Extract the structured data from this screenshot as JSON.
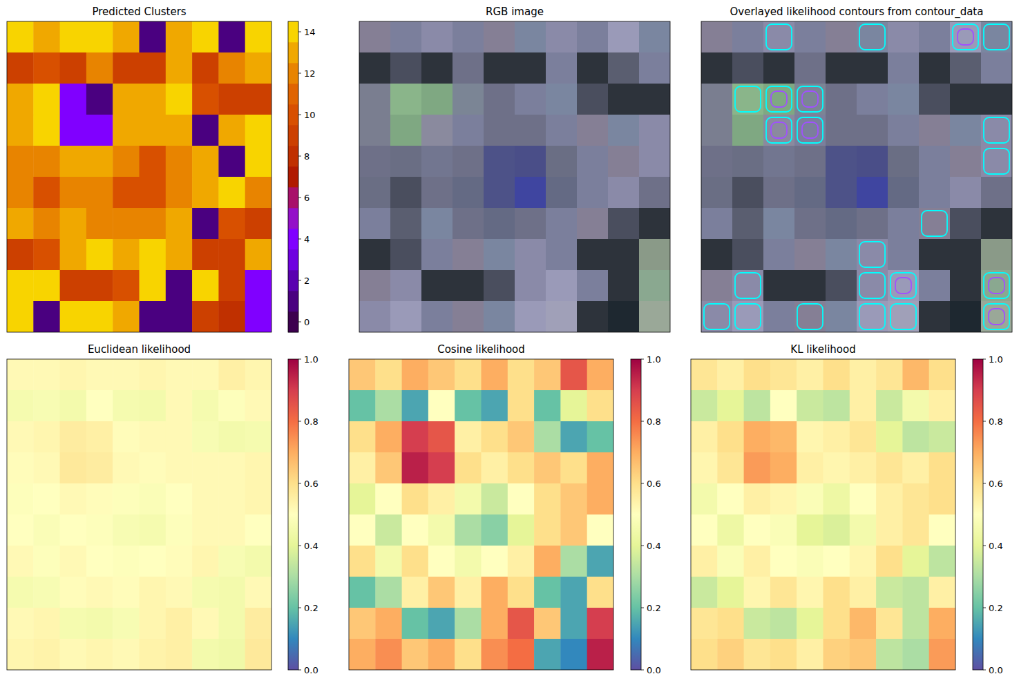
{
  "chart_data": [
    {
      "type": "clustermap",
      "title": "Predicted Clusters",
      "tick_labels": false,
      "clim": [
        -0.5,
        14.5
      ],
      "cticks": [
        0,
        2,
        4,
        6,
        8,
        10,
        12,
        14
      ],
      "colors": [
        "#3d004f",
        "#4a0080",
        "#5a00b0",
        "#6e00e0",
        "#8000ff",
        "#9410c8",
        "#a8106a",
        "#b01a00",
        "#c03000",
        "#cc4000",
        "#d85000",
        "#e06400",
        "#e88400",
        "#f0a800",
        "#f8d400"
      ],
      "cells": [
        [
          14,
          13,
          14,
          14,
          13,
          1,
          13,
          14,
          1,
          14
        ],
        [
          9,
          10,
          9,
          12,
          9,
          9,
          13,
          9,
          12,
          13
        ],
        [
          13,
          14,
          4,
          1,
          13,
          13,
          14,
          10,
          9,
          9
        ],
        [
          13,
          14,
          4,
          4,
          13,
          13,
          13,
          1,
          13,
          14
        ],
        [
          12,
          12,
          13,
          13,
          12,
          10,
          12,
          13,
          1,
          14
        ],
        [
          12,
          10,
          12,
          12,
          10,
          10,
          12,
          13,
          14,
          12
        ],
        [
          13,
          12,
          13,
          12,
          12,
          12,
          13,
          1,
          10,
          9
        ],
        [
          9,
          10,
          13,
          14,
          13,
          14,
          13,
          9,
          9,
          13
        ],
        [
          14,
          14,
          9,
          9,
          10,
          14,
          1,
          14,
          9,
          4
        ],
        [
          14,
          1,
          14,
          14,
          13,
          1,
          1,
          9,
          8,
          4
        ]
      ]
    },
    {
      "type": "image",
      "title": "RGB image",
      "tick_labels": false,
      "cells": [
        [
          "#857f95",
          "#7b7f9c",
          "#8a8aa8",
          "#7b7f9c",
          "#857f95",
          "#7a86a0",
          "#8a8aa8",
          "#7b7f9c",
          "#9a9ab8",
          "#7a86a0"
        ],
        [
          "#2d333b",
          "#4a4e5e",
          "#2d333b",
          "#6e7088",
          "#2d333b",
          "#2d333b",
          "#7b7f9c",
          "#2d333b",
          "#5a5e70",
          "#7b7f9c"
        ],
        [
          "#7a7e90",
          "#8ab58a",
          "#7fa882",
          "#7b8595",
          "#6e7088",
          "#7b7f9c",
          "#7a86a0",
          "#4a4e5e",
          "#2d333b",
          "#2d333b"
        ],
        [
          "#7a7e90",
          "#7fa882",
          "#8a8a9e",
          "#7b7f9c",
          "#6e7088",
          "#6e7088",
          "#7b7f9c",
          "#857f95",
          "#7a86a0",
          "#8a8aa8"
        ],
        [
          "#6e7088",
          "#6a6e84",
          "#727690",
          "#6e7088",
          "#4d5288",
          "#4a4e88",
          "#6a6e84",
          "#7b7f9c",
          "#857f95",
          "#8a8aa8"
        ],
        [
          "#6a6e84",
          "#4a4e5e",
          "#6e7088",
          "#646a84",
          "#4d5288",
          "#3f45a0",
          "#646a84",
          "#7b7f9c",
          "#8a8aa8",
          "#6e7088"
        ],
        [
          "#7b7f9c",
          "#5a5e70",
          "#7a86a0",
          "#6e7088",
          "#646a84",
          "#6e7088",
          "#7b7f9c",
          "#857f95",
          "#4a4e5e",
          "#2d333b"
        ],
        [
          "#2d333b",
          "#4a4e5e",
          "#7b7f9c",
          "#857f95",
          "#7a86a0",
          "#8a8aa8",
          "#7b7f9c",
          "#2d333b",
          "#2d333b",
          "#8a9a88"
        ],
        [
          "#857f95",
          "#8a8aa8",
          "#2d333b",
          "#2d333b",
          "#4a4e5e",
          "#8a8aa8",
          "#9a9ab8",
          "#7b7f9c",
          "#2d333b",
          "#8aa890"
        ],
        [
          "#8a8aa8",
          "#9a9ab8",
          "#7b7f9c",
          "#857f95",
          "#7a86a0",
          "#9a9ab8",
          "#a0a0b8",
          "#2d333b",
          "#1e2830",
          "#9aa898"
        ]
      ]
    },
    {
      "type": "contour",
      "title": "Overlayed likelihood contours from contour_data",
      "tick_labels": false,
      "levels": [
        0.7,
        0.85
      ],
      "colors": [
        "#00ffff",
        "#a050ff"
      ],
      "cells": [
        [
          0.65,
          0.6,
          0.7,
          0.65,
          0.6,
          0.7,
          0.6,
          0.65,
          0.85,
          0.7
        ],
        [
          0.2,
          0.3,
          0.15,
          0.5,
          0.2,
          0.15,
          0.6,
          0.2,
          0.4,
          0.6
        ],
        [
          0.6,
          0.7,
          0.9,
          0.85,
          0.55,
          0.6,
          0.65,
          0.3,
          0.15,
          0.2
        ],
        [
          0.55,
          0.65,
          0.95,
          0.9,
          0.6,
          0.55,
          0.6,
          0.65,
          0.6,
          0.7
        ],
        [
          0.4,
          0.5,
          0.6,
          0.55,
          0.45,
          0.35,
          0.5,
          0.6,
          0.65,
          0.7
        ],
        [
          0.5,
          0.35,
          0.5,
          0.45,
          0.3,
          0.25,
          0.4,
          0.6,
          0.65,
          0.5
        ],
        [
          0.6,
          0.45,
          0.6,
          0.5,
          0.45,
          0.5,
          0.55,
          0.7,
          0.3,
          0.15
        ],
        [
          0.2,
          0.3,
          0.55,
          0.65,
          0.55,
          0.7,
          0.6,
          0.2,
          0.15,
          0.6
        ],
        [
          0.65,
          0.7,
          0.2,
          0.15,
          0.3,
          0.7,
          0.85,
          0.65,
          0.15,
          0.9
        ],
        [
          0.7,
          0.75,
          0.65,
          0.7,
          0.6,
          0.75,
          0.8,
          0.15,
          0.1,
          0.95
        ]
      ]
    },
    {
      "type": "heatmap",
      "title": "Euclidean likelihood",
      "tick_labels": false,
      "clim": [
        0,
        1
      ],
      "cticks": [
        {
          "value": 0,
          "label": "0.0"
        },
        0.2,
        0.4,
        0.6,
        0.8,
        {
          "value": 1,
          "label": "1.0"
        }
      ],
      "colors": [
        "#5e4fa2",
        "#3288bd",
        "#66c2a5",
        "#abdda4",
        "#e6f598",
        "#ffffbf",
        "#fee08b",
        "#fdae61",
        "#f46d43",
        "#d53e4f",
        "#9e0142"
      ],
      "cells": [
        [
          0.52,
          0.52,
          0.53,
          0.52,
          0.52,
          0.53,
          0.52,
          0.52,
          0.55,
          0.53
        ],
        [
          0.46,
          0.47,
          0.45,
          0.5,
          0.46,
          0.45,
          0.52,
          0.46,
          0.49,
          0.52
        ],
        [
          0.52,
          0.53,
          0.56,
          0.55,
          0.51,
          0.52,
          0.52,
          0.47,
          0.45,
          0.46
        ],
        [
          0.51,
          0.52,
          0.57,
          0.56,
          0.52,
          0.51,
          0.52,
          0.52,
          0.52,
          0.53
        ],
        [
          0.49,
          0.5,
          0.52,
          0.51,
          0.49,
          0.48,
          0.5,
          0.52,
          0.52,
          0.53
        ],
        [
          0.5,
          0.48,
          0.5,
          0.49,
          0.47,
          0.46,
          0.49,
          0.52,
          0.52,
          0.5
        ],
        [
          0.52,
          0.49,
          0.52,
          0.5,
          0.49,
          0.5,
          0.51,
          0.53,
          0.47,
          0.45
        ],
        [
          0.46,
          0.47,
          0.51,
          0.52,
          0.51,
          0.53,
          0.52,
          0.46,
          0.45,
          0.52
        ],
        [
          0.52,
          0.53,
          0.46,
          0.45,
          0.47,
          0.53,
          0.55,
          0.52,
          0.45,
          0.56
        ],
        [
          0.53,
          0.54,
          0.52,
          0.53,
          0.52,
          0.54,
          0.55,
          0.45,
          0.44,
          0.57
        ]
      ]
    },
    {
      "type": "heatmap",
      "title": "Cosine likelihood",
      "tick_labels": false,
      "clim": [
        0,
        1
      ],
      "cticks": [
        {
          "value": 0,
          "label": "0.0"
        },
        0.2,
        0.4,
        0.6,
        0.8,
        {
          "value": 1,
          "label": "1.0"
        }
      ],
      "colors": [
        "#5e4fa2",
        "#3288bd",
        "#66c2a5",
        "#abdda4",
        "#e6f598",
        "#ffffbf",
        "#fee08b",
        "#fdae61",
        "#f46d43",
        "#d53e4f",
        "#9e0142"
      ],
      "cells": [
        [
          0.65,
          0.6,
          0.7,
          0.65,
          0.6,
          0.7,
          0.6,
          0.65,
          0.85,
          0.7
        ],
        [
          0.2,
          0.3,
          0.15,
          0.5,
          0.2,
          0.15,
          0.6,
          0.2,
          0.4,
          0.6
        ],
        [
          0.6,
          0.7,
          0.9,
          0.85,
          0.55,
          0.6,
          0.65,
          0.3,
          0.15,
          0.2
        ],
        [
          0.55,
          0.65,
          0.95,
          0.9,
          0.6,
          0.55,
          0.6,
          0.65,
          0.6,
          0.7
        ],
        [
          0.4,
          0.5,
          0.6,
          0.55,
          0.45,
          0.35,
          0.5,
          0.6,
          0.65,
          0.7
        ],
        [
          0.5,
          0.35,
          0.5,
          0.45,
          0.3,
          0.25,
          0.4,
          0.6,
          0.65,
          0.5
        ],
        [
          0.6,
          0.45,
          0.6,
          0.5,
          0.45,
          0.5,
          0.55,
          0.7,
          0.3,
          0.15
        ],
        [
          0.2,
          0.3,
          0.55,
          0.65,
          0.55,
          0.7,
          0.6,
          0.2,
          0.15,
          0.6
        ],
        [
          0.65,
          0.7,
          0.2,
          0.15,
          0.3,
          0.7,
          0.85,
          0.65,
          0.15,
          0.9
        ],
        [
          0.7,
          0.75,
          0.65,
          0.7,
          0.6,
          0.75,
          0.8,
          0.15,
          0.1,
          0.95
        ]
      ]
    },
    {
      "type": "heatmap",
      "title": "KL likelihood",
      "tick_labels": false,
      "clim": [
        0,
        1
      ],
      "cticks": [
        {
          "value": 0,
          "label": "0.0"
        },
        0.2,
        0.4,
        0.6,
        0.8,
        {
          "value": 1,
          "label": "1.0"
        }
      ],
      "colors": [
        "#5e4fa2",
        "#3288bd",
        "#66c2a5",
        "#abdda4",
        "#e6f598",
        "#ffffbf",
        "#fee08b",
        "#fdae61",
        "#f46d43",
        "#d53e4f",
        "#9e0142"
      ],
      "cells": [
        [
          0.58,
          0.55,
          0.6,
          0.58,
          0.55,
          0.6,
          0.55,
          0.58,
          0.68,
          0.6
        ],
        [
          0.35,
          0.4,
          0.33,
          0.5,
          0.35,
          0.33,
          0.55,
          0.35,
          0.45,
          0.55
        ],
        [
          0.55,
          0.6,
          0.7,
          0.68,
          0.53,
          0.55,
          0.58,
          0.4,
          0.33,
          0.35
        ],
        [
          0.53,
          0.58,
          0.73,
          0.7,
          0.55,
          0.53,
          0.55,
          0.58,
          0.55,
          0.6
        ],
        [
          0.45,
          0.5,
          0.55,
          0.53,
          0.48,
          0.43,
          0.5,
          0.55,
          0.58,
          0.6
        ],
        [
          0.5,
          0.43,
          0.5,
          0.48,
          0.4,
          0.38,
          0.45,
          0.55,
          0.58,
          0.5
        ],
        [
          0.55,
          0.48,
          0.55,
          0.5,
          0.48,
          0.5,
          0.53,
          0.6,
          0.4,
          0.33
        ],
        [
          0.35,
          0.4,
          0.53,
          0.58,
          0.53,
          0.6,
          0.55,
          0.35,
          0.33,
          0.55
        ],
        [
          0.58,
          0.6,
          0.35,
          0.33,
          0.4,
          0.6,
          0.68,
          0.58,
          0.33,
          0.7
        ],
        [
          0.6,
          0.63,
          0.58,
          0.6,
          0.55,
          0.63,
          0.65,
          0.33,
          0.3,
          0.73
        ]
      ]
    }
  ]
}
